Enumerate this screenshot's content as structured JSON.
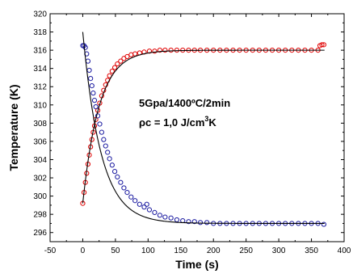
{
  "chart_data": {
    "type": "scatter",
    "title": "",
    "xlabel": "Time (s)",
    "ylabel": "Temperature (K)",
    "xlim": [
      -50,
      400
    ],
    "ylim": [
      295,
      320
    ],
    "xticks": [
      -50,
      0,
      50,
      100,
      150,
      200,
      250,
      300,
      350,
      400
    ],
    "yticks": [
      296,
      298,
      300,
      302,
      304,
      306,
      308,
      310,
      312,
      314,
      316,
      318,
      320
    ],
    "grid": false,
    "legend": "none",
    "annotations": {
      "line1": "5Gpa/1400ºC/2min",
      "line2_prefix": "ρc = 1,0 J/cm",
      "line2_sup": "3",
      "line2_suffix": "K"
    },
    "series": [
      {
        "color": "#e00000",
        "marker": "open-circle",
        "fit": {
          "start": 299.2,
          "end": 316.0,
          "tau": 25,
          "t_range": [
            0,
            370
          ]
        },
        "points": [
          {
            "x": 0,
            "y": 299.2
          },
          {
            "x": 2,
            "y": 300.4
          },
          {
            "x": 4,
            "y": 301.5
          },
          {
            "x": 6,
            "y": 302.5
          },
          {
            "x": 8,
            "y": 303.5
          },
          {
            "x": 10,
            "y": 304.5
          },
          {
            "x": 12,
            "y": 305.4
          },
          {
            "x": 14,
            "y": 306.2
          },
          {
            "x": 16,
            "y": 307.0
          },
          {
            "x": 18,
            "y": 307.7
          },
          {
            "x": 20,
            "y": 308.4
          },
          {
            "x": 23,
            "y": 309.4
          },
          {
            "x": 26,
            "y": 310.2
          },
          {
            "x": 29,
            "y": 311.0
          },
          {
            "x": 32,
            "y": 311.6
          },
          {
            "x": 35,
            "y": 312.2
          },
          {
            "x": 38,
            "y": 312.7
          },
          {
            "x": 41,
            "y": 313.2
          },
          {
            "x": 45,
            "y": 313.7
          },
          {
            "x": 49,
            "y": 314.1
          },
          {
            "x": 53,
            "y": 314.5
          },
          {
            "x": 58,
            "y": 314.8
          },
          {
            "x": 63,
            "y": 315.1
          },
          {
            "x": 68,
            "y": 315.3
          },
          {
            "x": 74,
            "y": 315.5
          },
          {
            "x": 80,
            "y": 315.6
          },
          {
            "x": 87,
            "y": 315.7
          },
          {
            "x": 94,
            "y": 315.8
          },
          {
            "x": 102,
            "y": 315.9
          },
          {
            "x": 110,
            "y": 315.9
          },
          {
            "x": 118,
            "y": 316.0
          },
          {
            "x": 126,
            "y": 316.0
          },
          {
            "x": 135,
            "y": 316.0
          },
          {
            "x": 144,
            "y": 316.0
          },
          {
            "x": 153,
            "y": 316.0
          },
          {
            "x": 162,
            "y": 316.0
          },
          {
            "x": 171,
            "y": 316.0
          },
          {
            "x": 180,
            "y": 316.0
          },
          {
            "x": 190,
            "y": 316.0
          },
          {
            "x": 200,
            "y": 316.0
          },
          {
            "x": 210,
            "y": 316.0
          },
          {
            "x": 220,
            "y": 316.0
          },
          {
            "x": 230,
            "y": 316.0
          },
          {
            "x": 240,
            "y": 316.0
          },
          {
            "x": 250,
            "y": 316.0
          },
          {
            "x": 260,
            "y": 316.0
          },
          {
            "x": 270,
            "y": 316.0
          },
          {
            "x": 280,
            "y": 316.0
          },
          {
            "x": 290,
            "y": 316.0
          },
          {
            "x": 300,
            "y": 316.0
          },
          {
            "x": 310,
            "y": 316.0
          },
          {
            "x": 320,
            "y": 316.0
          },
          {
            "x": 330,
            "y": 316.0
          },
          {
            "x": 340,
            "y": 316.0
          },
          {
            "x": 350,
            "y": 316.0
          },
          {
            "x": 360,
            "y": 316.0
          },
          {
            "x": 363,
            "y": 316.5
          },
          {
            "x": 366,
            "y": 316.6
          },
          {
            "x": 369,
            "y": 316.6
          }
        ]
      },
      {
        "color": "#1a1aa0",
        "marker": "open-circle",
        "fit": {
          "start": 318.0,
          "end": 297.0,
          "tau": 28,
          "t_range": [
            0,
            370
          ]
        },
        "points": [
          {
            "x": 0,
            "y": 316.5
          },
          {
            "x": 2,
            "y": 316.5
          },
          {
            "x": 4,
            "y": 316.3
          },
          {
            "x": 6,
            "y": 315.6
          },
          {
            "x": 8,
            "y": 314.8
          },
          {
            "x": 10,
            "y": 313.8
          },
          {
            "x": 12,
            "y": 312.9
          },
          {
            "x": 14,
            "y": 312.1
          },
          {
            "x": 16,
            "y": 311.3
          },
          {
            "x": 18,
            "y": 310.5
          },
          {
            "x": 20,
            "y": 309.8
          },
          {
            "x": 23,
            "y": 308.8
          },
          {
            "x": 26,
            "y": 307.9
          },
          {
            "x": 29,
            "y": 307.0
          },
          {
            "x": 32,
            "y": 306.2
          },
          {
            "x": 35,
            "y": 305.5
          },
          {
            "x": 38,
            "y": 304.8
          },
          {
            "x": 41,
            "y": 304.1
          },
          {
            "x": 45,
            "y": 303.4
          },
          {
            "x": 49,
            "y": 302.7
          },
          {
            "x": 53,
            "y": 302.1
          },
          {
            "x": 58,
            "y": 301.5
          },
          {
            "x": 63,
            "y": 300.9
          },
          {
            "x": 68,
            "y": 300.4
          },
          {
            "x": 74,
            "y": 299.9
          },
          {
            "x": 80,
            "y": 299.5
          },
          {
            "x": 87,
            "y": 299.1
          },
          {
            "x": 94,
            "y": 298.8
          },
          {
            "x": 98,
            "y": 299.1
          },
          {
            "x": 102,
            "y": 298.5
          },
          {
            "x": 110,
            "y": 298.2
          },
          {
            "x": 118,
            "y": 297.9
          },
          {
            "x": 126,
            "y": 297.7
          },
          {
            "x": 135,
            "y": 297.6
          },
          {
            "x": 144,
            "y": 297.4
          },
          {
            "x": 153,
            "y": 297.3
          },
          {
            "x": 162,
            "y": 297.2
          },
          {
            "x": 171,
            "y": 297.2
          },
          {
            "x": 180,
            "y": 297.1
          },
          {
            "x": 190,
            "y": 297.1
          },
          {
            "x": 200,
            "y": 297.0
          },
          {
            "x": 210,
            "y": 297.0
          },
          {
            "x": 220,
            "y": 297.0
          },
          {
            "x": 230,
            "y": 297.0
          },
          {
            "x": 240,
            "y": 297.0
          },
          {
            "x": 250,
            "y": 297.0
          },
          {
            "x": 260,
            "y": 297.0
          },
          {
            "x": 270,
            "y": 297.0
          },
          {
            "x": 280,
            "y": 297.0
          },
          {
            "x": 290,
            "y": 297.0
          },
          {
            "x": 300,
            "y": 297.0
          },
          {
            "x": 310,
            "y": 297.0
          },
          {
            "x": 320,
            "y": 297.0
          },
          {
            "x": 330,
            "y": 297.0
          },
          {
            "x": 340,
            "y": 297.0
          },
          {
            "x": 350,
            "y": 297.0
          },
          {
            "x": 360,
            "y": 297.0
          },
          {
            "x": 369,
            "y": 296.9
          }
        ]
      }
    ]
  }
}
